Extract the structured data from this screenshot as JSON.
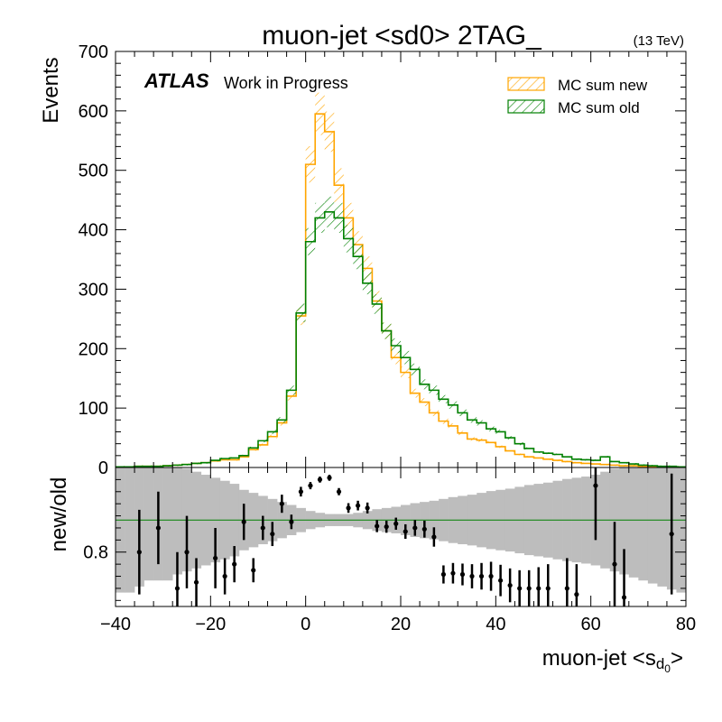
{
  "chart_data": {
    "type": "histogram",
    "title": "muon-jet <sd0> 2TAG_",
    "energy_label": "(13 TeV)",
    "atlas_label": "ATLAS",
    "atlas_sublabel": "Work in Progress",
    "xlabel": "muon-jet <s",
    "xlabel_sub1": "d",
    "xlabel_sub2": "0",
    "xlabel_end": ">",
    "ylabel": "Events",
    "ratio_ylabel": "new/old",
    "xlim": [
      -40,
      80
    ],
    "ylim": [
      0,
      700
    ],
    "ratio_ylim": [
      0.71,
      0.94
    ],
    "x_ticks": [
      "−40",
      "−20",
      "0",
      "20",
      "40",
      "60",
      "80"
    ],
    "y_ticks": [
      "0",
      "100",
      "200",
      "300",
      "400",
      "500",
      "600",
      "700"
    ],
    "ratio_y_ticks": [
      "0.8"
    ],
    "bin_width": 2,
    "bin_low_edges": [
      -40,
      -38,
      -36,
      -34,
      -32,
      -30,
      -28,
      -26,
      -24,
      -22,
      -20,
      -18,
      -16,
      -14,
      -12,
      -10,
      -8,
      -6,
      -4,
      -2,
      0,
      2,
      4,
      6,
      8,
      10,
      12,
      14,
      16,
      18,
      20,
      22,
      24,
      26,
      28,
      30,
      32,
      34,
      36,
      38,
      40,
      42,
      44,
      46,
      48,
      50,
      52,
      54,
      56,
      58,
      60,
      62,
      64,
      66,
      68,
      70,
      72,
      74,
      76,
      78
    ],
    "series": [
      {
        "name": "MC sum new",
        "color": "#ffa500",
        "values": [
          1,
          1,
          2,
          2,
          2,
          3,
          4,
          5,
          7,
          8,
          11,
          13,
          13,
          18,
          30,
          38,
          52,
          75,
          120,
          255,
          510,
          595,
          565,
          475,
          420,
          375,
          335,
          280,
          230,
          185,
          160,
          125,
          110,
          92,
          78,
          70,
          58,
          48,
          46,
          42,
          35,
          28,
          22,
          18,
          16,
          14,
          12,
          10,
          8,
          7,
          6,
          5,
          4,
          3,
          3,
          2,
          2,
          1,
          1,
          1
        ]
      },
      {
        "name": "MC sum old",
        "color": "#008000",
        "values": [
          1,
          1,
          2,
          2,
          2,
          3,
          4,
          5,
          7,
          8,
          12,
          15,
          16,
          20,
          33,
          45,
          60,
          80,
          130,
          260,
          380,
          420,
          430,
          420,
          385,
          355,
          310,
          275,
          230,
          205,
          185,
          165,
          140,
          130,
          115,
          105,
          92,
          80,
          75,
          65,
          60,
          50,
          40,
          32,
          26,
          24,
          22,
          18,
          14,
          13,
          12,
          18,
          10,
          8,
          6,
          4,
          3,
          2,
          2,
          1
        ]
      }
    ],
    "ratio_points": {
      "x": [
        -35,
        -31,
        -27,
        -25,
        -23,
        -19,
        -17,
        -15,
        -13,
        -11,
        -9,
        -7,
        -5,
        -3,
        -1,
        1,
        3,
        5,
        7,
        9,
        11,
        13,
        15,
        17,
        19,
        21,
        23,
        25,
        27,
        29,
        31,
        33,
        35,
        37,
        39,
        41,
        43,
        45,
        47,
        49,
        51,
        55,
        57,
        61,
        65,
        67,
        77
      ],
      "y": [
        0.8,
        0.84,
        0.74,
        0.8,
        0.75,
        0.79,
        0.76,
        0.78,
        0.85,
        0.77,
        0.84,
        0.83,
        0.88,
        0.85,
        0.9,
        0.91,
        0.92,
        0.923,
        0.9,
        0.873,
        0.877,
        0.873,
        0.843,
        0.842,
        0.847,
        0.834,
        0.84,
        0.838,
        0.825,
        0.763,
        0.765,
        0.763,
        0.76,
        0.76,
        0.76,
        0.753,
        0.745,
        0.74,
        0.74,
        0.74,
        0.74,
        0.74,
        0.73,
        0.91,
        0.78,
        0.725,
        0.83
      ],
      "err": [
        0.07,
        0.06,
        0.06,
        0.06,
        0.04,
        0.05,
        0.03,
        0.03,
        0.03,
        0.02,
        0.02,
        0.02,
        0.015,
        0.012,
        0.008,
        0.006,
        0.005,
        0.005,
        0.006,
        0.008,
        0.008,
        0.009,
        0.01,
        0.01,
        0.01,
        0.012,
        0.013,
        0.014,
        0.016,
        0.015,
        0.017,
        0.018,
        0.02,
        0.022,
        0.024,
        0.026,
        0.028,
        0.03,
        0.03,
        0.035,
        0.04,
        0.05,
        0.05,
        0.09,
        0.07,
        0.08,
        0.1
      ]
    },
    "ratio_band_halfwidth": [
      0.12,
      0.12,
      0.11,
      0.1,
      0.1,
      0.1,
      0.09,
      0.085,
      0.08,
      0.075,
      0.07,
      0.065,
      0.06,
      0.05,
      0.045,
      0.04,
      0.035,
      0.03,
      0.025,
      0.02,
      0.015,
      0.012,
      0.01,
      0.01,
      0.01,
      0.012,
      0.015,
      0.018,
      0.02,
      0.022,
      0.025,
      0.028,
      0.03,
      0.032,
      0.035,
      0.038,
      0.04,
      0.042,
      0.045,
      0.048,
      0.05,
      0.052,
      0.055,
      0.058,
      0.06,
      0.062,
      0.065,
      0.068,
      0.07,
      0.072,
      0.075,
      0.08,
      0.085,
      0.09,
      0.095,
      0.1,
      0.105,
      0.11,
      0.115,
      0.12
    ],
    "ratio_reference": 0.853,
    "grid": false,
    "legend": "top-right",
    "hatch": true
  }
}
